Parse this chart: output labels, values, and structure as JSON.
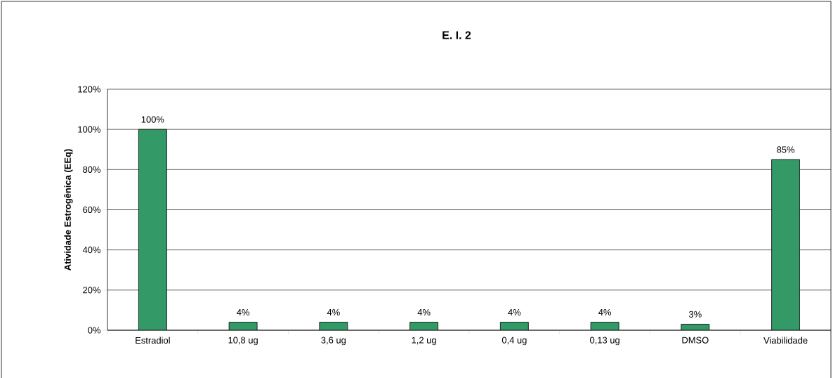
{
  "chart_data": {
    "type": "bar",
    "title": "E. I. 2",
    "ylabel": "Atividade Estrogênica (EEq)",
    "categories": [
      "Estradiol",
      "10,8 ug",
      "3,6 ug",
      "1,2 ug",
      "0,4 ug",
      "0,13 ug",
      "DMSO",
      "Viabilidade"
    ],
    "values": [
      100,
      4,
      4,
      4,
      4,
      4,
      3,
      85
    ],
    "value_labels": [
      "100%",
      "4%",
      "4%",
      "4%",
      "4%",
      "4%",
      "3%",
      "85%"
    ],
    "color": "#339966",
    "ylim": [
      0,
      120
    ],
    "yticks": [
      {
        "value": 0,
        "label": "0%"
      },
      {
        "value": 20,
        "label": "20%"
      },
      {
        "value": 40,
        "label": "40%"
      },
      {
        "value": 60,
        "label": "60%"
      },
      {
        "value": 80,
        "label": "80%"
      },
      {
        "value": 100,
        "label": "100%"
      },
      {
        "value": 120,
        "label": "120%"
      }
    ],
    "grid": "y"
  }
}
